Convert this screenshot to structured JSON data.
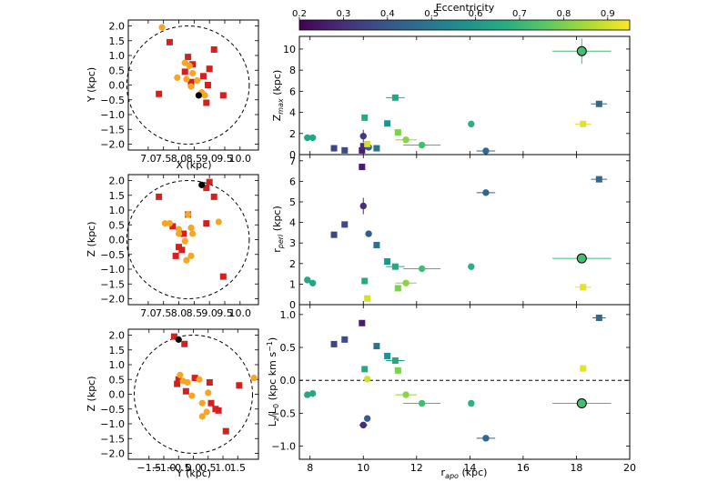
{
  "colorbar": {
    "label": "Eccentricity",
    "ticks": [
      "0.2",
      "0.3",
      "0.4",
      "0.5",
      "0.6",
      "0.7",
      "0.8",
      "0.9"
    ],
    "range": [
      0.2,
      0.95
    ],
    "stops": [
      "#440154",
      "#472c7a",
      "#3b518b",
      "#2c718e",
      "#21908d",
      "#27ad81",
      "#5cc863",
      "#aadc32",
      "#fde725"
    ]
  },
  "chart_data": [
    {
      "type": "scatter",
      "panel": "xy",
      "xlabel": "X (kpc)",
      "ylabel": "Y (kpc)",
      "xlim": [
        6.35,
        10.6
      ],
      "ylim": [
        -2.2,
        2.2
      ],
      "xticks": [
        "7.0",
        "7.5",
        "8.0",
        "8.5",
        "9.0",
        "9.5",
        "10.0"
      ],
      "yticks": [
        "2.0",
        "1.5",
        "1.0",
        "0.5",
        "0.0",
        "-0.5",
        "-1.0",
        "-1.5",
        "-2.0"
      ],
      "circle": {
        "cx": 8.3,
        "cy": 0.0,
        "r": 2.0
      },
      "series": [
        {
          "marker": "square",
          "color": "#d62020",
          "points": [
            [
              7.7,
              1.45
            ],
            [
              8.3,
              0.95
            ],
            [
              9.15,
              1.2
            ],
            [
              8.45,
              0.7
            ],
            [
              8.2,
              0.45
            ],
            [
              9.0,
              0.55
            ],
            [
              8.8,
              0.3
            ],
            [
              8.4,
              0.1
            ],
            [
              7.35,
              -0.3
            ],
            [
              8.95,
              0.0
            ],
            [
              9.45,
              -0.35
            ],
            [
              8.9,
              -0.6
            ]
          ]
        },
        {
          "marker": "circle",
          "color": "#f5a623",
          "points": [
            [
              7.45,
              1.95
            ],
            [
              8.2,
              0.75
            ],
            [
              8.35,
              0.65
            ],
            [
              8.45,
              0.4
            ],
            [
              7.95,
              0.25
            ],
            [
              8.25,
              0.2
            ],
            [
              8.6,
              0.15
            ],
            [
              8.4,
              -0.05
            ],
            [
              8.75,
              -0.25
            ],
            [
              8.85,
              -0.35
            ]
          ]
        },
        {
          "marker": "circle",
          "color": "#000000",
          "points": [
            [
              8.65,
              -0.35
            ]
          ]
        }
      ]
    },
    {
      "type": "scatter",
      "panel": "xz",
      "xlabel": "X (kpc)",
      "ylabel": "Z (kpc)",
      "xlim": [
        6.35,
        10.6
      ],
      "ylim": [
        -2.2,
        2.2
      ],
      "xticks": [
        "7.0",
        "7.5",
        "8.0",
        "8.5",
        "9.0",
        "9.5",
        "10.0"
      ],
      "yticks": [
        "2.0",
        "1.5",
        "1.0",
        "0.5",
        "0.0",
        "-0.5",
        "-1.0",
        "-1.5",
        "-2.0"
      ],
      "circle": {
        "cx": 8.3,
        "cy": 0.0,
        "r": 2.0
      },
      "series": [
        {
          "marker": "square",
          "color": "#d62020",
          "points": [
            [
              9.0,
              1.95
            ],
            [
              8.9,
              1.75
            ],
            [
              7.35,
              1.45
            ],
            [
              9.15,
              1.45
            ],
            [
              8.3,
              0.85
            ],
            [
              7.8,
              0.45
            ],
            [
              8.9,
              0.55
            ],
            [
              8.15,
              0.2
            ],
            [
              8.0,
              -0.25
            ],
            [
              8.1,
              -0.35
            ],
            [
              7.9,
              -0.55
            ],
            [
              9.45,
              -1.25
            ]
          ]
        },
        {
          "marker": "circle",
          "color": "#f5a623",
          "points": [
            [
              8.3,
              0.85
            ],
            [
              7.55,
              0.55
            ],
            [
              8.0,
              0.35
            ],
            [
              8.4,
              0.4
            ],
            [
              9.3,
              0.6
            ],
            [
              8.0,
              0.2
            ],
            [
              8.45,
              0.2
            ],
            [
              8.2,
              -0.05
            ],
            [
              8.4,
              -0.55
            ],
            [
              8.25,
              -0.7
            ],
            [
              7.7,
              0.55
            ]
          ]
        },
        {
          "marker": "circle",
          "color": "#000000",
          "points": [
            [
              8.75,
              1.85
            ]
          ]
        }
      ]
    },
    {
      "type": "scatter",
      "panel": "yz",
      "xlabel": "Y (kpc)",
      "ylabel": "Z (kpc)",
      "xlim": [
        -2.2,
        2.2
      ],
      "ylim": [
        -2.2,
        2.2
      ],
      "xticks": [
        "-1.5",
        "-1.0",
        "-0.5",
        "0.0",
        "0.5",
        "1.0",
        "1.5"
      ],
      "yticks": [
        "2.0",
        "1.5",
        "1.0",
        "0.5",
        "0.0",
        "-0.5",
        "-1.0",
        "-1.5",
        "-2.0"
      ],
      "circle": {
        "cx": 0.0,
        "cy": 0.0,
        "r": 2.0
      },
      "series": [
        {
          "marker": "square",
          "color": "#d62020",
          "points": [
            [
              -0.65,
              1.95
            ],
            [
              -0.3,
              1.7
            ],
            [
              -0.5,
              0.5
            ],
            [
              0.05,
              0.55
            ],
            [
              -0.55,
              0.35
            ],
            [
              -0.25,
              0.1
            ],
            [
              0.55,
              0.4
            ],
            [
              1.55,
              0.3
            ],
            [
              0.6,
              -0.3
            ],
            [
              0.75,
              -0.5
            ],
            [
              1.1,
              -1.25
            ],
            [
              0.85,
              -0.55
            ]
          ]
        },
        {
          "marker": "circle",
          "color": "#f5a623",
          "points": [
            [
              -0.45,
              0.65
            ],
            [
              0.2,
              0.5
            ],
            [
              -0.2,
              0.4
            ],
            [
              0.5,
              0.05
            ],
            [
              -0.05,
              -0.05
            ],
            [
              0.3,
              -0.3
            ],
            [
              0.45,
              -0.6
            ],
            [
              0.3,
              -0.75
            ],
            [
              2.05,
              0.55
            ],
            [
              -0.35,
              0.45
            ]
          ]
        },
        {
          "marker": "circle",
          "color": "#000000",
          "points": [
            [
              -0.5,
              1.85
            ]
          ]
        }
      ]
    },
    {
      "type": "scatter",
      "panel": "zmax",
      "ylabel": "Z_max (kpc)",
      "xlim": [
        7.6,
        20.0
      ],
      "ylim": [
        0,
        11.2
      ],
      "yticks": [
        "0",
        "2",
        "4",
        "6",
        "8",
        "10"
      ],
      "points": [
        {
          "x": 7.9,
          "y": 1.6,
          "e": 0.65,
          "m": "circle"
        },
        {
          "x": 8.1,
          "y": 1.6,
          "e": 0.65,
          "m": "circle"
        },
        {
          "x": 8.9,
          "y": 0.6,
          "e": 0.36,
          "m": "square"
        },
        {
          "x": 9.3,
          "y": 0.4,
          "e": 0.37,
          "m": "square"
        },
        {
          "x": 9.95,
          "y": 0.4,
          "e": 0.26,
          "m": "square"
        },
        {
          "x": 10.0,
          "y": 0.8,
          "e": 0.3,
          "m": "square"
        },
        {
          "x": 10.05,
          "y": 3.5,
          "e": 0.66,
          "m": "square"
        },
        {
          "x": 10.0,
          "y": 1.75,
          "e": 0.33,
          "m": "circle",
          "yerr": 0.6
        },
        {
          "x": 10.2,
          "y": 0.7,
          "e": 0.42,
          "m": "circle"
        },
        {
          "x": 10.15,
          "y": 1.0,
          "e": 0.9,
          "m": "square"
        },
        {
          "x": 10.5,
          "y": 0.6,
          "e": 0.48,
          "m": "square"
        },
        {
          "x": 10.9,
          "y": 2.95,
          "e": 0.58,
          "m": "square"
        },
        {
          "x": 11.2,
          "y": 5.4,
          "e": 0.65,
          "m": "square",
          "xerr": 0.35
        },
        {
          "x": 11.3,
          "y": 2.1,
          "e": 0.8,
          "m": "square"
        },
        {
          "x": 11.6,
          "y": 1.4,
          "e": 0.82,
          "m": "circle",
          "xerr": 0.4
        },
        {
          "x": 12.2,
          "y": 0.9,
          "e": 0.72,
          "m": "circle",
          "xerr": 0.7
        },
        {
          "x": 14.05,
          "y": 2.9,
          "e": 0.68,
          "m": "circle"
        },
        {
          "x": 14.6,
          "y": 0.35,
          "e": 0.45,
          "m": "circle",
          "xerr": 0.35
        },
        {
          "x": 18.2,
          "y": 9.8,
          "e": 0.72,
          "m": "circle",
          "xerr": 1.1,
          "yerr": 1.2,
          "big": true
        },
        {
          "x": 18.25,
          "y": 2.9,
          "e": 0.92,
          "m": "square",
          "xerr": 0.3
        },
        {
          "x": 18.85,
          "y": 4.8,
          "e": 0.46,
          "m": "square",
          "xerr": 0.3
        }
      ]
    },
    {
      "type": "scatter",
      "panel": "rperi",
      "ylabel": "r_peri (kpc)",
      "xlim": [
        7.6,
        20.0
      ],
      "ylim": [
        0,
        7.3
      ],
      "yticks": [
        "0",
        "1",
        "2",
        "3",
        "4",
        "5",
        "6",
        "7"
      ],
      "points": [
        {
          "x": 7.9,
          "y": 1.2,
          "e": 0.65,
          "m": "circle"
        },
        {
          "x": 8.1,
          "y": 1.05,
          "e": 0.65,
          "m": "circle"
        },
        {
          "x": 8.9,
          "y": 3.4,
          "e": 0.36,
          "m": "square"
        },
        {
          "x": 9.3,
          "y": 3.9,
          "e": 0.37,
          "m": "square"
        },
        {
          "x": 9.95,
          "y": 6.7,
          "e": 0.26,
          "m": "square"
        },
        {
          "x": 10.0,
          "y": 4.8,
          "e": 0.3,
          "m": "circle",
          "yerr": 0.4
        },
        {
          "x": 10.05,
          "y": 1.15,
          "e": 0.66,
          "m": "square"
        },
        {
          "x": 10.15,
          "y": 0.3,
          "e": 0.9,
          "m": "square"
        },
        {
          "x": 10.2,
          "y": 3.45,
          "e": 0.42,
          "m": "circle"
        },
        {
          "x": 10.5,
          "y": 2.9,
          "e": 0.48,
          "m": "square"
        },
        {
          "x": 10.9,
          "y": 2.1,
          "e": 0.58,
          "m": "square"
        },
        {
          "x": 11.2,
          "y": 1.85,
          "e": 0.65,
          "m": "square",
          "xerr": 0.35
        },
        {
          "x": 11.3,
          "y": 0.8,
          "e": 0.8,
          "m": "square"
        },
        {
          "x": 11.6,
          "y": 1.05,
          "e": 0.82,
          "m": "circle",
          "xerr": 0.4
        },
        {
          "x": 12.2,
          "y": 1.75,
          "e": 0.72,
          "m": "circle",
          "xerr": 0.7
        },
        {
          "x": 14.05,
          "y": 1.85,
          "e": 0.68,
          "m": "circle"
        },
        {
          "x": 14.6,
          "y": 5.45,
          "e": 0.45,
          "m": "circle",
          "xerr": 0.35
        },
        {
          "x": 18.2,
          "y": 2.25,
          "e": 0.72,
          "m": "circle",
          "xerr": 1.1,
          "big": true
        },
        {
          "x": 18.25,
          "y": 0.85,
          "e": 0.92,
          "m": "square",
          "xerr": 0.3
        },
        {
          "x": 18.85,
          "y": 6.1,
          "e": 0.46,
          "m": "square",
          "xerr": 0.3
        }
      ]
    },
    {
      "type": "scatter",
      "panel": "lz",
      "ylabel": "L_z/L_0 (kpc km s^-1)",
      "xlabel": "r_apo (kpc)",
      "xlim": [
        7.6,
        20.0
      ],
      "ylim": [
        -1.2,
        1.15
      ],
      "xticks": [
        "8",
        "10",
        "12",
        "14",
        "16",
        "18",
        "20"
      ],
      "yticks": [
        "1.0",
        "0.5",
        "0.0",
        "-0.5",
        "-1.0"
      ],
      "zero_line": true,
      "points": [
        {
          "x": 7.9,
          "y": -0.22,
          "e": 0.65,
          "m": "circle"
        },
        {
          "x": 8.1,
          "y": -0.2,
          "e": 0.65,
          "m": "circle"
        },
        {
          "x": 8.9,
          "y": 0.55,
          "e": 0.36,
          "m": "square"
        },
        {
          "x": 9.3,
          "y": 0.62,
          "e": 0.37,
          "m": "square"
        },
        {
          "x": 9.95,
          "y": 0.87,
          "e": 0.26,
          "m": "square"
        },
        {
          "x": 10.0,
          "y": -0.68,
          "e": 0.3,
          "m": "circle",
          "xerr": 0.15
        },
        {
          "x": 10.15,
          "y": -0.58,
          "e": 0.42,
          "m": "circle"
        },
        {
          "x": 10.05,
          "y": 0.17,
          "e": 0.66,
          "m": "square"
        },
        {
          "x": 10.15,
          "y": 0.02,
          "e": 0.9,
          "m": "circle"
        },
        {
          "x": 10.5,
          "y": 0.52,
          "e": 0.48,
          "m": "square"
        },
        {
          "x": 10.9,
          "y": 0.37,
          "e": 0.58,
          "m": "square"
        },
        {
          "x": 11.2,
          "y": 0.3,
          "e": 0.65,
          "m": "square",
          "xerr": 0.35
        },
        {
          "x": 11.3,
          "y": 0.15,
          "e": 0.8,
          "m": "square"
        },
        {
          "x": 11.6,
          "y": -0.22,
          "e": 0.82,
          "m": "circle",
          "xerr": 0.4
        },
        {
          "x": 12.2,
          "y": -0.35,
          "e": 0.72,
          "m": "circle",
          "xerr": 0.7
        },
        {
          "x": 14.05,
          "y": -0.35,
          "e": 0.68,
          "m": "circle"
        },
        {
          "x": 14.6,
          "y": -0.88,
          "e": 0.45,
          "m": "circle",
          "xerr": 0.35
        },
        {
          "x": 18.2,
          "y": -0.35,
          "e": 0.72,
          "m": "circle",
          "xerr": 1.1,
          "big": true
        },
        {
          "x": 18.25,
          "y": 0.18,
          "e": 0.92,
          "m": "square"
        },
        {
          "x": 18.85,
          "y": 0.95,
          "e": 0.46,
          "m": "square",
          "xerr": 0.25
        }
      ]
    }
  ]
}
